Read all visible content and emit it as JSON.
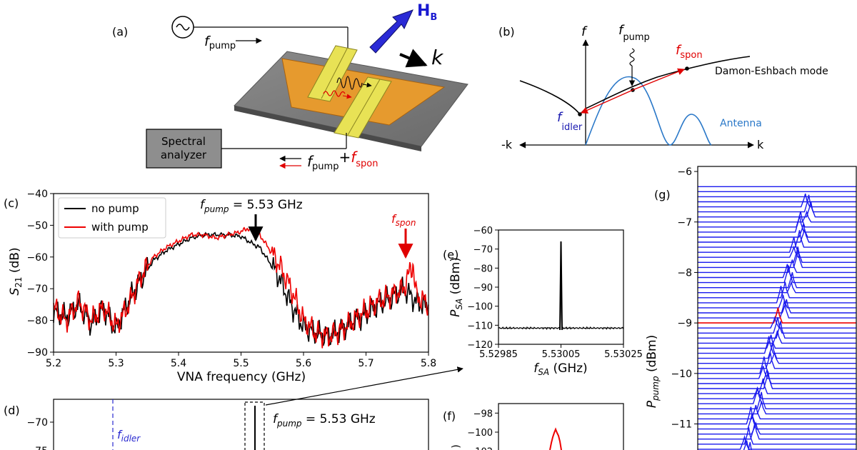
{
  "panels": {
    "a": {
      "label": "(a)",
      "pump_text": "f",
      "pump_sub": "pump",
      "field_text": "H",
      "field_sub": "B",
      "k_text": "k",
      "analyzer_line1": "Spectral",
      "analyzer_line2": "analyzer",
      "out_f": "f",
      "out_pump_sub": "pump",
      "out_plus": "+",
      "out_spon_f": "f",
      "out_spon_sub": "spon"
    },
    "b": {
      "label": "(b)",
      "f_axis": "f",
      "pump_f": "f",
      "pump_sub": "pump",
      "spon_f": "f",
      "spon_sub": "spon",
      "idler_f": "f",
      "idler_sub": "idler",
      "de_mode": "Damon-Eshbach mode",
      "antenna": "Antenna",
      "neg_k": "-k",
      "pos_k": "k"
    },
    "c": {
      "label": "(c)",
      "pump_ann": "f",
      "pump_ann_sub": "pump",
      "pump_ann_val": " = 5.53 GHz",
      "spon_f": "f",
      "spon_sub": "spon",
      "ylabel_s": "S",
      "ylabel_sub": "21",
      "ylabel_unit": " (dB)"
    },
    "d": {
      "label": "(d)",
      "idler_f": "f",
      "idler_sub": "idler",
      "pump_ann": "f",
      "pump_ann_sub": "pump",
      "pump_ann_val": " = 5.53 GHz"
    },
    "e": {
      "label": "(e)",
      "ylabel_p": "P",
      "ylabel_sub": "SA",
      "ylabel_unit": " (dBm)",
      "xlabel_f": "f",
      "xlabel_sub": "SA",
      "xlabel_unit": " (GHz)"
    },
    "f": {
      "label": "(f)"
    },
    "g": {
      "label": "(g)",
      "ylabel_p": "P",
      "ylabel_sub": "pump",
      "ylabel_unit": " (dBm)"
    }
  },
  "chart_data": [
    {
      "panel": "c",
      "type": "line",
      "xlabel": "VNA frequency (GHz)",
      "ylabel": "S21 (dB)",
      "xlim": [
        5.2,
        5.8
      ],
      "ylim": [
        -90,
        -40
      ],
      "xticks": [
        "5.2",
        "5.3",
        "5.4",
        "5.5",
        "5.6",
        "5.7",
        "5.8"
      ],
      "yticks": [
        "−40",
        "−50",
        "−60",
        "−70",
        "−80",
        "−90"
      ],
      "legend": "top-left",
      "series": [
        {
          "name": "no pump",
          "color": "#000000",
          "x": [
            5.2,
            5.22,
            5.24,
            5.26,
            5.28,
            5.3,
            5.32,
            5.34,
            5.36,
            5.38,
            5.4,
            5.42,
            5.44,
            5.46,
            5.48,
            5.5,
            5.52,
            5.53,
            5.54,
            5.56,
            5.58,
            5.6,
            5.62,
            5.64,
            5.66,
            5.68,
            5.7,
            5.72,
            5.74,
            5.76,
            5.78,
            5.8
          ],
          "y": [
            -77,
            -79,
            -75,
            -81,
            -76,
            -83,
            -74,
            -67,
            -61,
            -58,
            -56,
            -54,
            -53,
            -53,
            -53,
            -53.5,
            -56,
            -57,
            -60,
            -66,
            -75,
            -82,
            -84,
            -85,
            -83,
            -80,
            -78,
            -75,
            -73,
            -70,
            -74,
            -76
          ]
        },
        {
          "name": "with pump",
          "color": "#ee0000",
          "x": [
            5.2,
            5.22,
            5.24,
            5.26,
            5.28,
            5.3,
            5.32,
            5.34,
            5.36,
            5.38,
            5.4,
            5.42,
            5.44,
            5.46,
            5.48,
            5.5,
            5.51,
            5.52,
            5.53,
            5.54,
            5.56,
            5.58,
            5.6,
            5.62,
            5.64,
            5.66,
            5.68,
            5.7,
            5.72,
            5.74,
            5.76,
            5.775,
            5.78,
            5.8
          ],
          "y": [
            -76,
            -80,
            -74,
            -80,
            -76,
            -82,
            -75,
            -66,
            -60,
            -57,
            -55,
            -53,
            -53,
            -54,
            -53,
            -52,
            -51,
            -52,
            -53,
            -56,
            -62,
            -70,
            -80,
            -84,
            -85,
            -83,
            -80,
            -77,
            -74,
            -72,
            -70,
            -62,
            -72,
            -75
          ]
        }
      ],
      "annotations": [
        "f_pump = 5.53 GHz",
        "f_spon"
      ]
    },
    {
      "panel": "d",
      "type": "line",
      "xlim": [
        5.2,
        5.8
      ],
      "yticks": [
        "−70",
        "−75"
      ],
      "ylim": [
        -76,
        -66
      ]
    },
    {
      "panel": "e",
      "type": "line",
      "xlim": [
        5.52985,
        5.53025
      ],
      "ylim": [
        -120,
        -60
      ],
      "xticks": [
        "5.52985",
        "5.53005",
        "5.53025"
      ],
      "yticks": [
        "−60",
        "−70",
        "−80",
        "−90",
        "−100",
        "−110",
        "−120"
      ],
      "series": [
        {
          "name": "",
          "color": "#000000",
          "x": [
            5.52985,
            5.53,
            5.53004,
            5.530048,
            5.53005,
            5.530052,
            5.53006,
            5.5301,
            5.53025
          ],
          "y": [
            -111.5,
            -111.5,
            -111.5,
            -112.5,
            -66,
            -112.5,
            -111.5,
            -111.5,
            -111.5
          ]
        }
      ]
    },
    {
      "panel": "f",
      "type": "line",
      "yticks": [
        "−98",
        "−100",
        "−102"
      ],
      "ylim": [
        -103,
        -97
      ],
      "series": [
        {
          "name": "",
          "color": "#ee0000",
          "peak": -99
        }
      ]
    },
    {
      "panel": "g",
      "type": "line",
      "ylabel": "P_pump (dBm)",
      "ylim": [
        -11.7,
        -5.9
      ],
      "yticks": [
        "−6",
        "−7",
        "−8",
        "−9",
        "−10",
        "−11"
      ],
      "traces_start": -6.3,
      "traces_step": 0.1,
      "highlight": -9.0,
      "colors": {
        "traces": "#1a1aee",
        "highlight": "#ee0000"
      }
    }
  ]
}
